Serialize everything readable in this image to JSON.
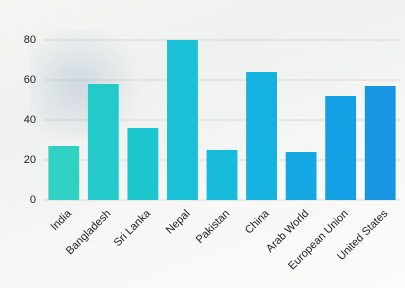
{
  "chart_data": {
    "type": "bar",
    "categories": [
      "India",
      "Bangladesh",
      "Sri Lanka",
      "Nepal",
      "Pakistan",
      "China",
      "Arab World",
      "European Union",
      "United States"
    ],
    "values": [
      27,
      58,
      36,
      80,
      25,
      64,
      24,
      52,
      57
    ],
    "colors": [
      "#2fd2c2",
      "#22cbc9",
      "#1ec6cf",
      "#1ac0d6",
      "#18badc",
      "#15b2e0",
      "#14a9e2",
      "#159fe4",
      "#1896e4"
    ],
    "ylim": [
      0,
      80
    ],
    "yticks": [
      0,
      20,
      40,
      60,
      80
    ],
    "grid": true
  }
}
